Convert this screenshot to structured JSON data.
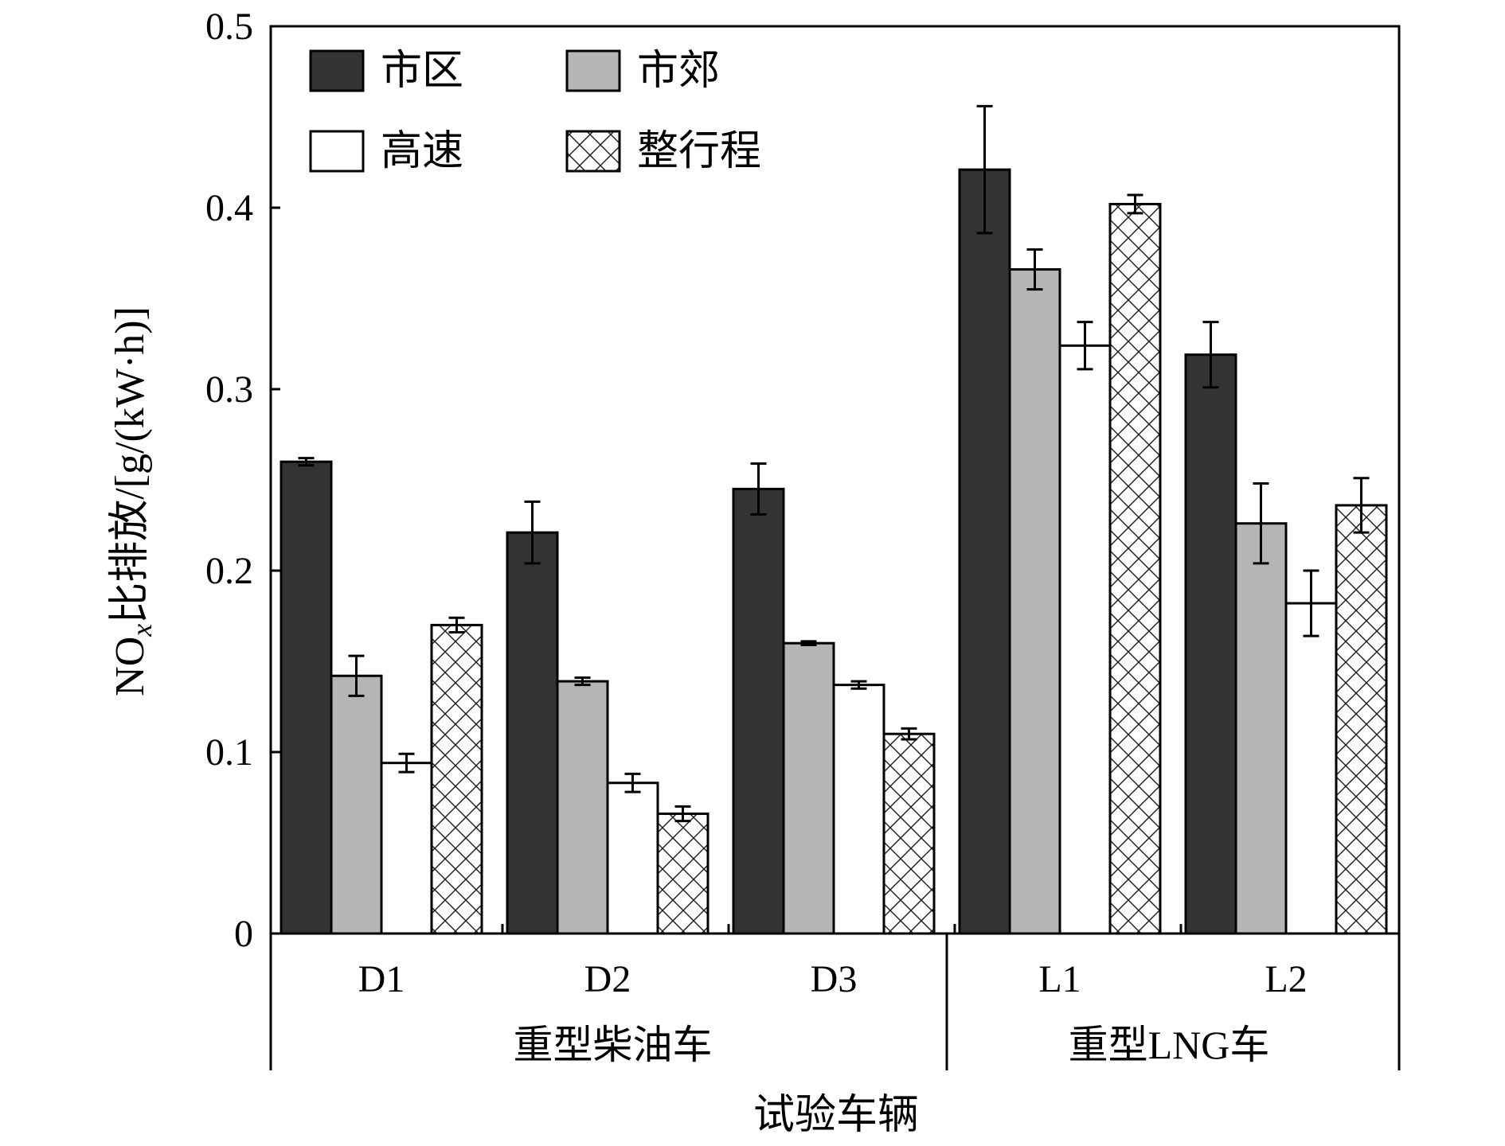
{
  "chart_data": {
    "type": "bar",
    "title": "",
    "xlabel": "试验车辆",
    "ylabel": "NOx比排放/[g/(kW·h)]",
    "ylabel_parts": {
      "prefix": "NO",
      "subscript": "x",
      "rest": "比排放/[g/(kW·h)]"
    },
    "ylim": [
      0,
      0.5
    ],
    "yticks": [
      "0",
      "0.1",
      "0.2",
      "0.3",
      "0.4",
      "0.5"
    ],
    "grid": false,
    "legend_position": "top-left",
    "categories": [
      "D1",
      "D2",
      "D3",
      "L1",
      "L2"
    ],
    "groups": [
      {
        "label": "重型柴油车",
        "categories": [
          "D1",
          "D2",
          "D3"
        ]
      },
      {
        "label": "重型LNG车",
        "categories": [
          "L1",
          "L2"
        ]
      }
    ],
    "series": [
      {
        "name": "市区",
        "fill": "#333333",
        "pattern": "solid",
        "values": [
          0.26,
          0.221,
          0.245,
          0.421,
          0.319
        ],
        "errors": [
          0.002,
          0.017,
          0.014,
          0.035,
          0.018
        ]
      },
      {
        "name": "市郊",
        "fill": "#b5b5b5",
        "pattern": "solid",
        "values": [
          0.142,
          0.139,
          0.16,
          0.366,
          0.226
        ],
        "errors": [
          0.011,
          0.002,
          0.001,
          0.011,
          0.022
        ]
      },
      {
        "name": "高速",
        "fill": "#ffffff",
        "pattern": "solid",
        "values": [
          0.094,
          0.083,
          0.137,
          0.324,
          0.182
        ],
        "errors": [
          0.005,
          0.005,
          0.002,
          0.013,
          0.018
        ]
      },
      {
        "name": "整行程",
        "fill": "#ffffff",
        "pattern": "crosshatch",
        "values": [
          0.17,
          0.066,
          0.11,
          0.402,
          0.236
        ],
        "errors": [
          0.004,
          0.004,
          0.003,
          0.005,
          0.015
        ]
      }
    ]
  }
}
